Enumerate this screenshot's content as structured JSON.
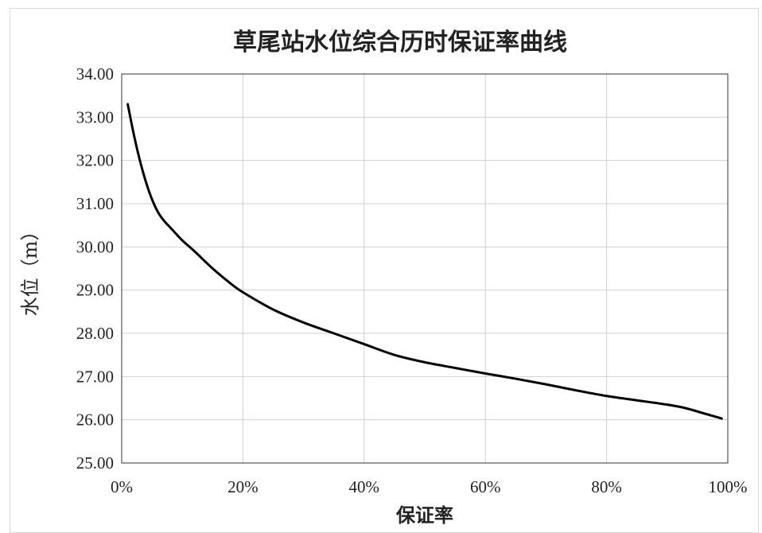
{
  "chart_data": {
    "type": "line",
    "title": "草尾站水位综合历时保证率曲线",
    "xlabel": "保证率",
    "ylabel": "水位（m）",
    "xlim": [
      0,
      100
    ],
    "ylim": [
      25,
      34
    ],
    "x_ticks": [
      0,
      20,
      40,
      60,
      80,
      100
    ],
    "x_tick_labels": [
      "0%",
      "20%",
      "40%",
      "60%",
      "80%",
      "100%"
    ],
    "y_ticks": [
      25,
      26,
      27,
      28,
      29,
      30,
      31,
      32,
      33,
      34
    ],
    "y_tick_labels": [
      "25.00",
      "26.00",
      "27.00",
      "28.00",
      "29.00",
      "30.00",
      "31.00",
      "32.00",
      "33.00",
      "34.00"
    ],
    "grid": true,
    "legend": "none",
    "line_color": "#000000",
    "series": [
      {
        "x": [
          1,
          2,
          3,
          4,
          5,
          6,
          7,
          8,
          10,
          12,
          15,
          18,
          20,
          25,
          30,
          35,
          40,
          45,
          50,
          55,
          60,
          65,
          70,
          75,
          80,
          85,
          90,
          93,
          96,
          99
        ],
        "y": [
          33.3,
          32.6,
          32.0,
          31.5,
          31.1,
          30.8,
          30.6,
          30.45,
          30.15,
          29.9,
          29.5,
          29.15,
          28.95,
          28.55,
          28.25,
          28.0,
          27.75,
          27.5,
          27.33,
          27.2,
          27.07,
          26.95,
          26.82,
          26.68,
          26.55,
          26.45,
          26.35,
          26.27,
          26.15,
          26.03
        ]
      }
    ]
  }
}
